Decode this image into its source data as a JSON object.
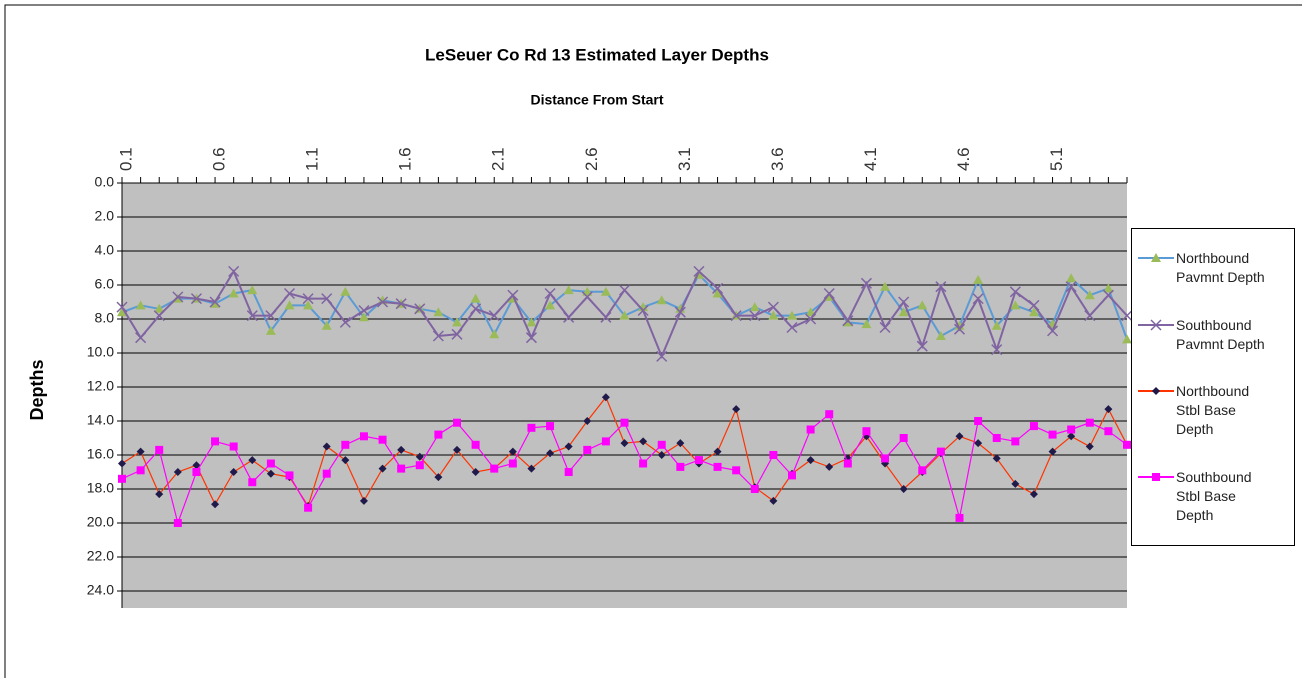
{
  "chart_data": {
    "type": "line",
    "title": "LeSeuer Co Rd 13 Estimated Layer Depths",
    "x_label": "Distance From Start",
    "y_label": "Depths",
    "categories": [
      0.1,
      null,
      null,
      null,
      null,
      0.6,
      null,
      null,
      null,
      null,
      1.1,
      null,
      null,
      null,
      null,
      1.6,
      null,
      null,
      null,
      null,
      2.1,
      null,
      null,
      null,
      null,
      2.6,
      null,
      null,
      null,
      null,
      3.1,
      null,
      null,
      null,
      null,
      3.6,
      null,
      null,
      null,
      null,
      4.1,
      null,
      null,
      null,
      null,
      4.6,
      null,
      null,
      null,
      null,
      5.1,
      null,
      null,
      null,
      null
    ],
    "ylim": [
      0,
      25
    ],
    "y_reversed": true,
    "grid": true,
    "yticks": [
      {
        "value": 0,
        "label": "0.0"
      },
      {
        "value": 2,
        "label": "2.0"
      },
      {
        "value": 4,
        "label": "4.0"
      },
      {
        "value": 6,
        "label": "6.0"
      },
      {
        "value": 8,
        "label": "8.0"
      },
      {
        "value": 10,
        "label": "10.0"
      },
      {
        "value": 12,
        "label": "12.0"
      },
      {
        "value": 14,
        "label": "14.0"
      },
      {
        "value": 16,
        "label": "16.0"
      },
      {
        "value": 18,
        "label": "18.0"
      },
      {
        "value": 20,
        "label": "20.0"
      },
      {
        "value": 22,
        "label": "22.0"
      },
      {
        "value": 24,
        "label": "24.0"
      }
    ],
    "legend": "right",
    "series": [
      {
        "name": "Northbound Pavmnt Depth",
        "color": "#5b9bd5",
        "marker": "triangle",
        "marker_color": "#9bbb59",
        "values": [
          7.6,
          7.2,
          7.4,
          6.8,
          6.8,
          7.1,
          6.5,
          6.3,
          8.7,
          7.2,
          7.2,
          8.4,
          6.4,
          7.9,
          6.9,
          7.1,
          7.4,
          7.6,
          8.2,
          6.8,
          8.9,
          6.8,
          8.2,
          7.2,
          6.3,
          6.4,
          6.4,
          7.8,
          7.3,
          6.9,
          7.4,
          5.4,
          6.5,
          7.8,
          7.3,
          7.8,
          7.8,
          7.6,
          6.7,
          8.2,
          8.3,
          6.1,
          7.6,
          7.2,
          9.0,
          8.4,
          5.7,
          8.4,
          7.2,
          7.6,
          8.3,
          5.6,
          6.6,
          6.2,
          9.2
        ]
      },
      {
        "name": "Southbound Pavmnt Depth",
        "color": "#8064a2",
        "marker": "x",
        "marker_color": "#8064a2",
        "values": [
          7.3,
          9.1,
          7.8,
          6.7,
          6.8,
          7.0,
          5.2,
          7.8,
          7.8,
          6.5,
          6.8,
          6.8,
          8.2,
          7.5,
          7.0,
          7.1,
          7.4,
          9.0,
          8.9,
          7.4,
          7.8,
          6.6,
          9.1,
          6.5,
          7.9,
          6.7,
          7.9,
          6.3,
          7.5,
          10.2,
          7.6,
          5.2,
          6.2,
          7.8,
          7.8,
          7.3,
          8.5,
          8.0,
          6.5,
          8.1,
          5.9,
          8.5,
          7.0,
          9.6,
          6.1,
          8.6,
          6.8,
          9.8,
          6.4,
          7.2,
          8.7,
          6.1,
          7.8,
          6.6,
          7.8
        ]
      },
      {
        "name": "Northbound Stbl Base Depth",
        "color": "#ff3300",
        "marker": "diamond",
        "marker_color": "#1f1a4a",
        "values": [
          16.5,
          15.8,
          18.3,
          17.0,
          16.6,
          18.9,
          17.0,
          16.3,
          17.1,
          17.3,
          19.0,
          15.5,
          16.3,
          18.7,
          16.8,
          15.7,
          16.1,
          17.3,
          15.7,
          17.0,
          16.8,
          15.8,
          16.8,
          15.9,
          15.5,
          14.0,
          12.6,
          15.3,
          15.2,
          16.0,
          15.3,
          16.5,
          15.8,
          13.3,
          17.9,
          18.7,
          17.1,
          16.3,
          16.7,
          16.2,
          14.9,
          16.5,
          18.0,
          17.0,
          15.9,
          14.9,
          15.3,
          16.2,
          17.7,
          18.3,
          15.8,
          14.9,
          15.5,
          13.3,
          15.4
        ]
      },
      {
        "name": "Southbound Stbl Base Depth",
        "color": "#ff00ff",
        "marker": "square",
        "marker_color": "#ff00ff",
        "values": [
          17.4,
          16.9,
          15.7,
          20.0,
          17.0,
          15.2,
          15.5,
          17.6,
          16.5,
          17.2,
          19.1,
          17.1,
          15.4,
          14.9,
          15.1,
          16.8,
          16.6,
          14.8,
          14.1,
          15.4,
          16.8,
          16.5,
          14.4,
          14.3,
          17.0,
          15.7,
          15.2,
          14.1,
          16.5,
          15.4,
          16.7,
          16.3,
          16.7,
          16.9,
          18.0,
          16.0,
          17.2,
          14.5,
          13.6,
          16.5,
          14.6,
          16.2,
          15.0,
          16.9,
          15.8,
          19.7,
          14.0,
          15.0,
          15.2,
          14.3,
          14.8,
          14.5,
          14.1,
          14.6,
          15.4
        ]
      }
    ]
  }
}
